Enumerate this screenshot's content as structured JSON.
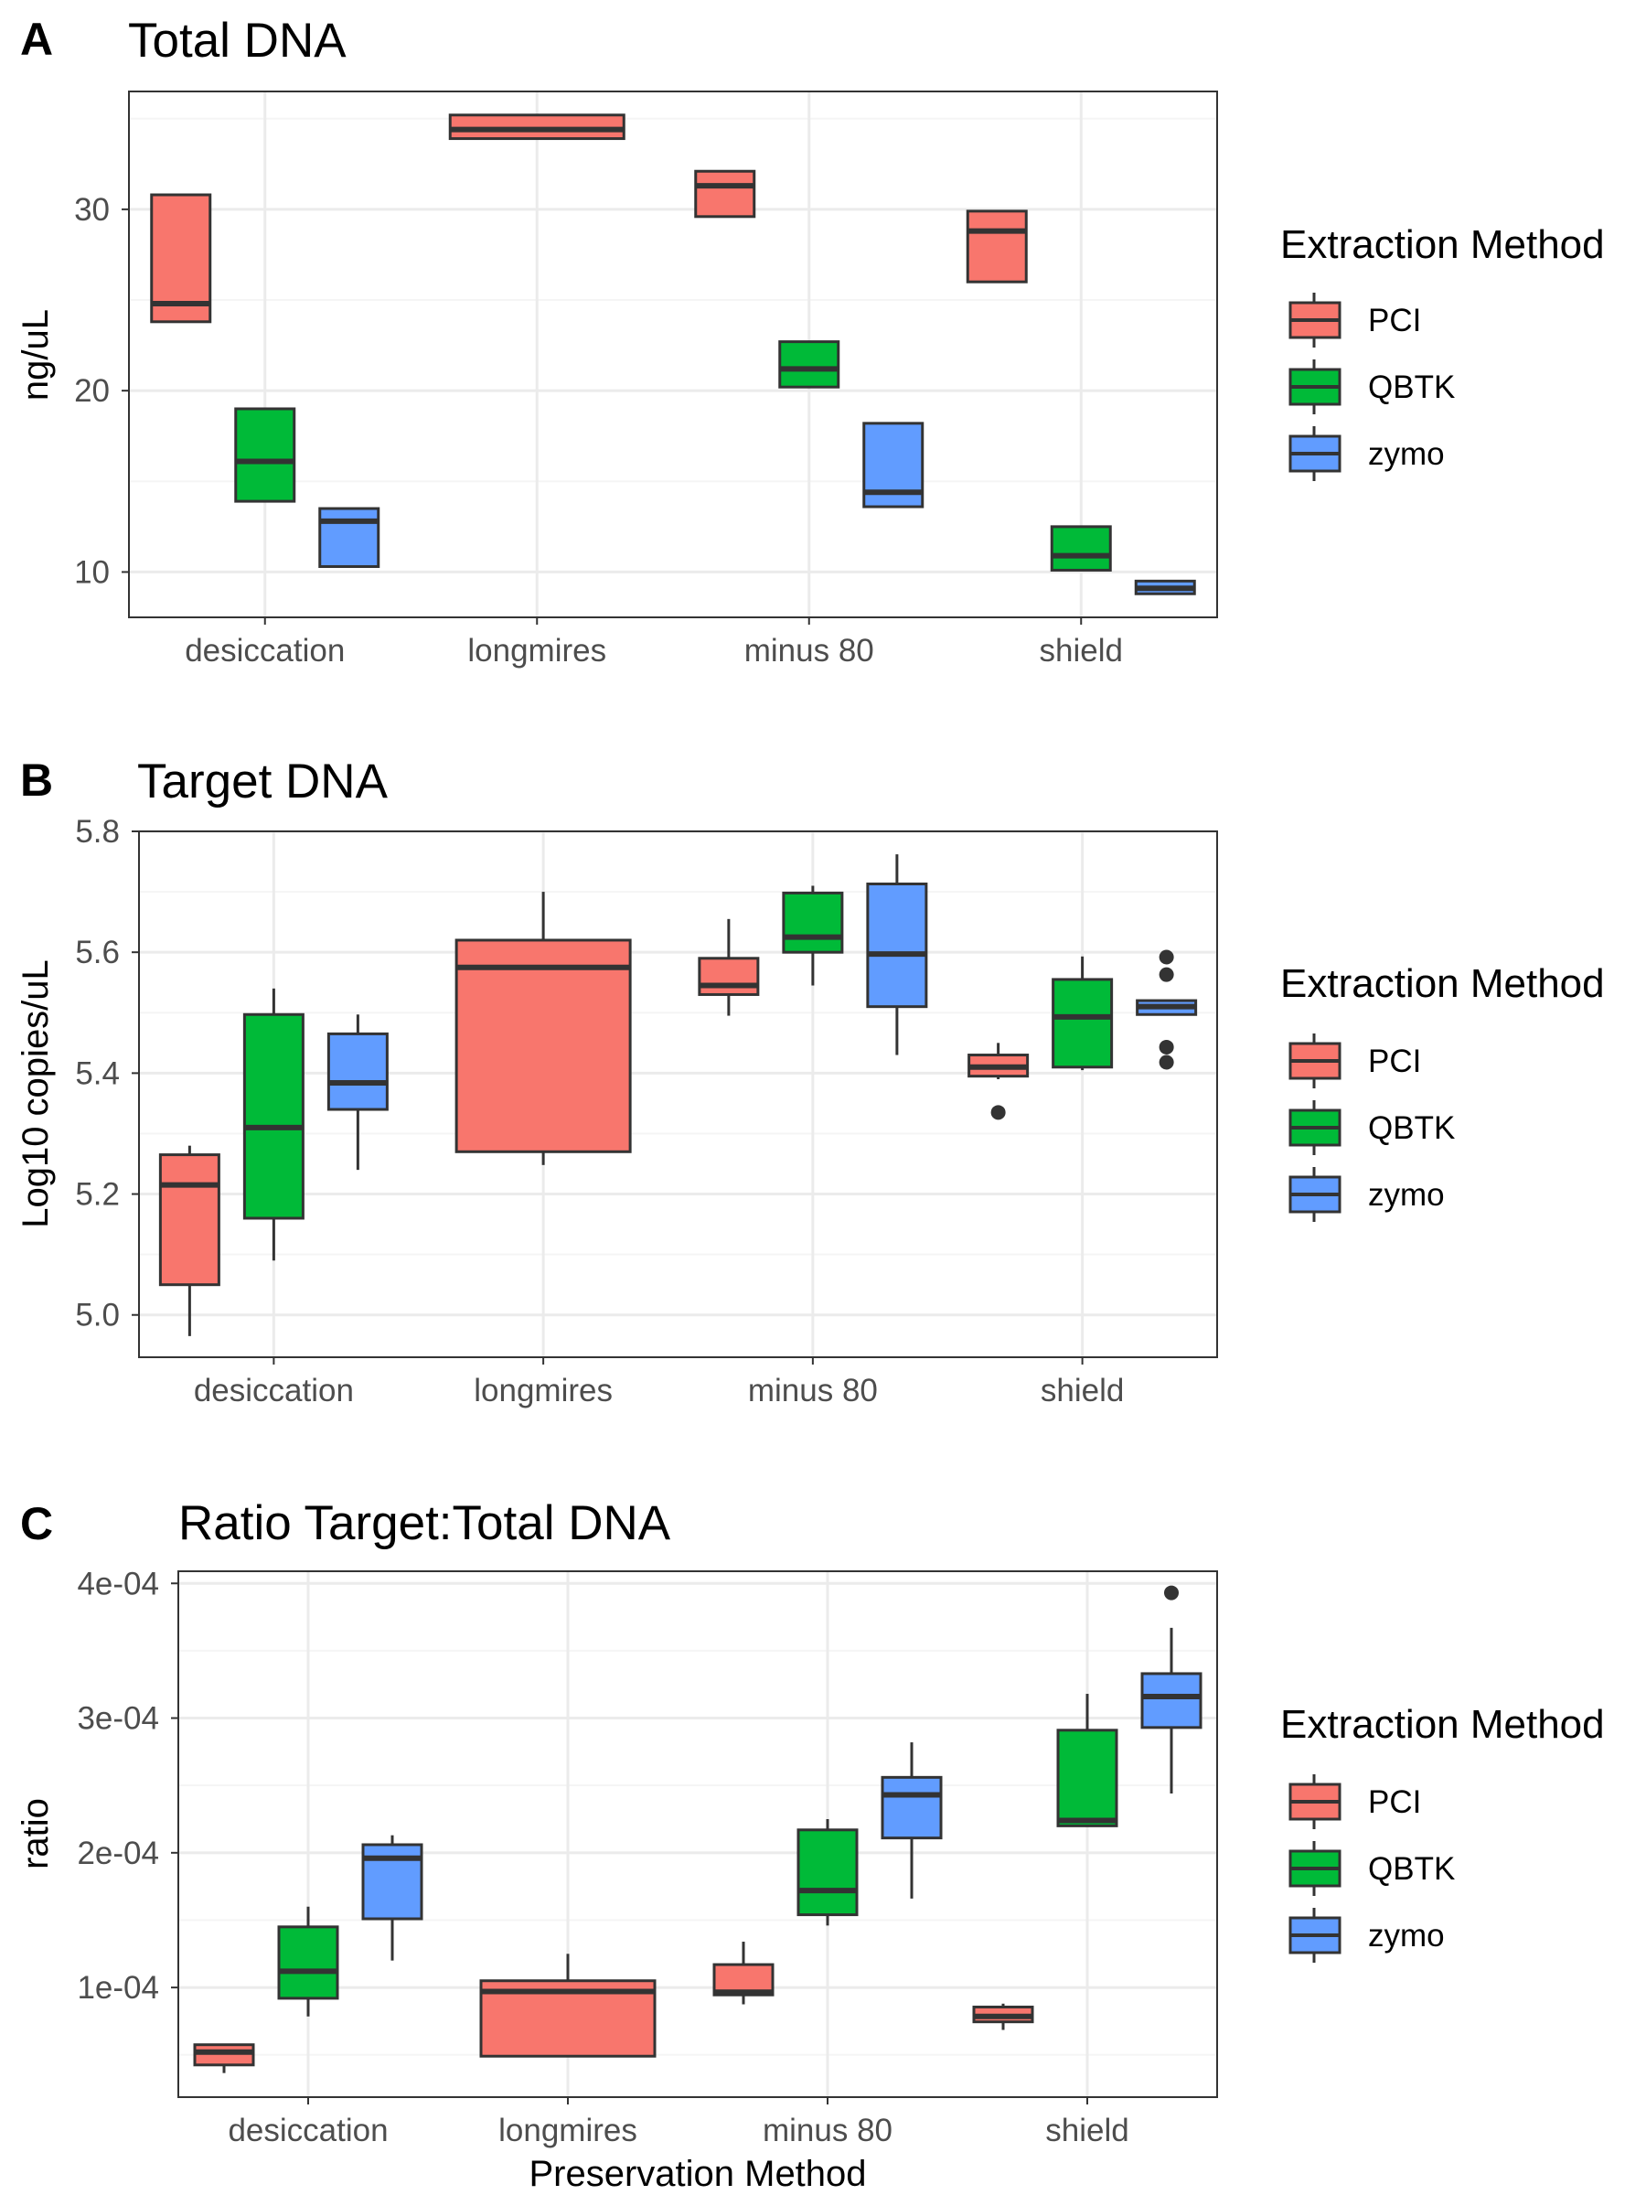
{
  "figure": {
    "x_axis_title": "Preservation Method",
    "legend_title": "Extraction Method",
    "legend_items": [
      {
        "label": "PCI",
        "color": "#F8766D"
      },
      {
        "label": "QBTK",
        "color": "#00BA38"
      },
      {
        "label": "zymo",
        "color": "#619CFF"
      }
    ]
  },
  "chart_data": [
    {
      "type": "box",
      "panel": "A",
      "title": "Total DNA",
      "ylabel": "ng/uL",
      "xlabel": "",
      "categories": [
        "desiccation",
        "longmires",
        "minus 80",
        "shield"
      ],
      "ylim": [
        7.5,
        36.5
      ],
      "y_ticks": [
        "10",
        "20",
        "30"
      ],
      "grid": true,
      "legend": "right",
      "series": [
        {
          "name": "PCI",
          "color": "#F8766D",
          "boxes": [
            {
              "category": "desiccation",
              "q1": 23.8,
              "median": 24.8,
              "q3": 30.8
            },
            {
              "category": "longmires",
              "q1": 33.9,
              "median": 34.4,
              "q3": 35.2
            },
            {
              "category": "minus 80",
              "q1": 29.6,
              "median": 31.3,
              "q3": 32.1
            },
            {
              "category": "shield",
              "q1": 26.0,
              "median": 28.8,
              "q3": 29.9
            }
          ]
        },
        {
          "name": "QBTK",
          "color": "#00BA38",
          "boxes": [
            {
              "category": "desiccation",
              "q1": 13.9,
              "median": 16.1,
              "q3": 19.0
            },
            {
              "category": "minus 80",
              "q1": 20.2,
              "median": 21.2,
              "q3": 22.7
            },
            {
              "category": "shield",
              "q1": 10.1,
              "median": 10.9,
              "q3": 12.5
            }
          ]
        },
        {
          "name": "zymo",
          "color": "#619CFF",
          "boxes": [
            {
              "category": "desiccation",
              "q1": 10.3,
              "median": 12.8,
              "q3": 13.5
            },
            {
              "category": "minus 80",
              "q1": 13.6,
              "median": 14.4,
              "q3": 18.2
            },
            {
              "category": "shield",
              "q1": 8.8,
              "median": 9.1,
              "q3": 9.5
            }
          ]
        }
      ]
    },
    {
      "type": "box",
      "panel": "B",
      "title": "Target DNA",
      "ylabel": "Log10 copies/uL",
      "xlabel": "",
      "categories": [
        "desiccation",
        "longmires",
        "minus 80",
        "shield"
      ],
      "ylim": [
        4.93,
        5.8
      ],
      "y_ticks": [
        "5.0",
        "5.2",
        "5.4",
        "5.6",
        "5.8"
      ],
      "grid": true,
      "legend": "right",
      "series": [
        {
          "name": "PCI",
          "color": "#F8766D",
          "boxes": [
            {
              "category": "desiccation",
              "lower": 4.965,
              "q1": 5.05,
              "median": 5.215,
              "q3": 5.265,
              "upper": 5.28
            },
            {
              "category": "longmires",
              "lower": 5.248,
              "q1": 5.27,
              "median": 5.575,
              "q3": 5.62,
              "upper": 5.7
            },
            {
              "category": "minus 80",
              "lower": 5.495,
              "q1": 5.53,
              "median": 5.545,
              "q3": 5.59,
              "upper": 5.655
            },
            {
              "category": "shield",
              "lower": 5.39,
              "q1": 5.395,
              "median": 5.41,
              "q3": 5.43,
              "upper": 5.45,
              "outliers": [
                5.335
              ]
            }
          ]
        },
        {
          "name": "QBTK",
          "color": "#00BA38",
          "boxes": [
            {
              "category": "desiccation",
              "lower": 5.09,
              "q1": 5.16,
              "median": 5.31,
              "q3": 5.497,
              "upper": 5.54
            },
            {
              "category": "minus 80",
              "lower": 5.545,
              "q1": 5.6,
              "median": 5.625,
              "q3": 5.698,
              "upper": 5.71
            },
            {
              "category": "shield",
              "lower": 5.405,
              "q1": 5.41,
              "median": 5.493,
              "q3": 5.555,
              "upper": 5.593
            }
          ]
        },
        {
          "name": "zymo",
          "color": "#619CFF",
          "boxes": [
            {
              "category": "desiccation",
              "lower": 5.24,
              "q1": 5.34,
              "median": 5.384,
              "q3": 5.465,
              "upper": 5.497
            },
            {
              "category": "minus 80",
              "lower": 5.43,
              "q1": 5.51,
              "median": 5.597,
              "q3": 5.713,
              "upper": 5.762
            },
            {
              "category": "shield",
              "lower": 5.497,
              "q1": 5.497,
              "median": 5.51,
              "q3": 5.52,
              "upper": 5.52,
              "outliers": [
                5.418,
                5.443,
                5.563,
                5.592
              ]
            }
          ]
        }
      ]
    },
    {
      "type": "box",
      "panel": "C",
      "title": "Ratio Target:Total DNA",
      "ylabel": "ratio",
      "xlabel": "Preservation Method",
      "categories": [
        "desiccation",
        "longmires",
        "minus 80",
        "shield"
      ],
      "ylim": [
        1.86e-05,
        0.000409
      ],
      "y_ticks": [
        "1e-04",
        "2e-04",
        "3e-04",
        "4e-04"
      ],
      "grid": true,
      "legend": "right",
      "series": [
        {
          "name": "PCI",
          "color": "#F8766D",
          "boxes": [
            {
              "category": "desiccation",
              "lower": 3.65e-05,
              "q1": 4.25e-05,
              "median": 5.2e-05,
              "q3": 5.75e-05,
              "upper": 5.8e-05
            },
            {
              "category": "longmires",
              "lower": 4.9e-05,
              "q1": 4.9e-05,
              "median": 9.7e-05,
              "q3": 0.000105,
              "upper": 0.000125
            },
            {
              "category": "minus 80",
              "lower": 8.75e-05,
              "q1": 9.45e-05,
              "median": 9.65e-05,
              "q3": 0.000117,
              "upper": 0.000134
            },
            {
              "category": "shield",
              "lower": 6.85e-05,
              "q1": 7.45e-05,
              "median": 7.85e-05,
              "q3": 8.55e-05,
              "upper": 8.8e-05
            }
          ]
        },
        {
          "name": "QBTK",
          "color": "#00BA38",
          "boxes": [
            {
              "category": "desiccation",
              "lower": 7.85e-05,
              "q1": 9.2e-05,
              "median": 0.000112,
              "q3": 0.000145,
              "upper": 0.00016
            },
            {
              "category": "minus 80",
              "lower": 0.000146,
              "q1": 0.000154,
              "median": 0.000172,
              "q3": 0.000217,
              "upper": 0.000225
            },
            {
              "category": "shield",
              "lower": 0.00022,
              "q1": 0.00022,
              "median": 0.000224,
              "q3": 0.000291,
              "upper": 0.000318
            }
          ]
        },
        {
          "name": "zymo",
          "color": "#619CFF",
          "boxes": [
            {
              "category": "desiccation",
              "lower": 0.00012,
              "q1": 0.000151,
              "median": 0.000196,
              "q3": 0.000206,
              "upper": 0.000213
            },
            {
              "category": "minus 80",
              "lower": 0.000166,
              "q1": 0.000211,
              "median": 0.000243,
              "q3": 0.000256,
              "upper": 0.000282
            },
            {
              "category": "shield",
              "lower": 0.000244,
              "q1": 0.000293,
              "median": 0.000316,
              "q3": 0.000333,
              "upper": 0.000367,
              "outliers": [
                0.000393
              ]
            }
          ]
        }
      ]
    }
  ]
}
